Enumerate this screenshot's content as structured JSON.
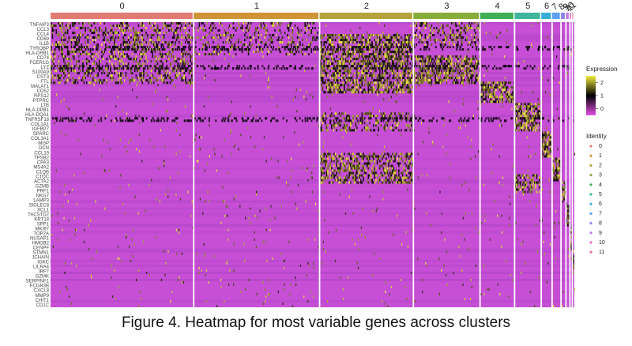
{
  "caption": "Figure 4. Heatmap for most variable genes across clusters",
  "chart_data": {
    "type": "heatmap",
    "clusters": [
      "0",
      "1",
      "2",
      "3",
      "4",
      "5",
      "6",
      "7",
      "8",
      "9",
      "10",
      "11"
    ],
    "cluster_colors": [
      "#e07b72",
      "#cf9435",
      "#b3a33a",
      "#86ac3a",
      "#3fae55",
      "#3fb59b",
      "#3aaed6",
      "#5d9ef0",
      "#8a84f2",
      "#c27ae8",
      "#e36ed1",
      "#ec6b9c"
    ],
    "cluster_relative_widths": [
      0.29,
      0.255,
      0.19,
      0.135,
      0.07,
      0.054,
      0.022,
      0.018,
      0.01,
      0.008,
      0.005,
      0.004
    ],
    "gene_labels": [
      "TNFAIP3",
      "CCL3",
      "CCL4",
      "CD69",
      "IL1B",
      "TYROBP",
      "HLA-DRB1",
      "CD74",
      "FCER1G",
      "LYZ",
      "S100A9",
      "CST3",
      "FTL",
      "MALAT1",
      "CD52",
      "RPS12",
      "PTPRC",
      "LTB",
      "HLA-DPB1",
      "HLA-DQA1",
      "TNFRSF18",
      "COL1A1",
      "IGFBP7",
      "SPARC",
      "COL3A1",
      "MGP",
      "DCN",
      "CCL19",
      "TPSB2",
      "CPA3",
      "MS4A2",
      "C1QB",
      "C1QC",
      "ACTA2",
      "GZMB",
      "PRF1",
      "NKG7",
      "LAMP3",
      "SIGLEC8",
      "XCL1",
      "TACSTD2",
      "KRT18",
      "SPP1",
      "MKI67",
      "TOP2A",
      "NUSAP1",
      "HMGB2",
      "CENPF",
      "STMN1",
      "JCHAIN",
      "IGKC",
      "LILRA4",
      "IRF7",
      "GZMK",
      "SERPINF1",
      "FCGR3B",
      "CXCL8",
      "MMP9",
      "CHIT1",
      "CD1C"
    ],
    "legend": {
      "title": "Expression",
      "range": [
        -0.5,
        2.5
      ],
      "ticks": [
        0,
        1,
        2
      ],
      "colors": [
        "#e54fe6",
        "#000000",
        "#f2ee3c"
      ]
    },
    "identity_legend": {
      "title": "Identity",
      "entries": [
        "0",
        "1",
        "2",
        "3",
        "4",
        "5",
        "6",
        "7",
        "8",
        "9",
        "10",
        "11"
      ]
    }
  }
}
